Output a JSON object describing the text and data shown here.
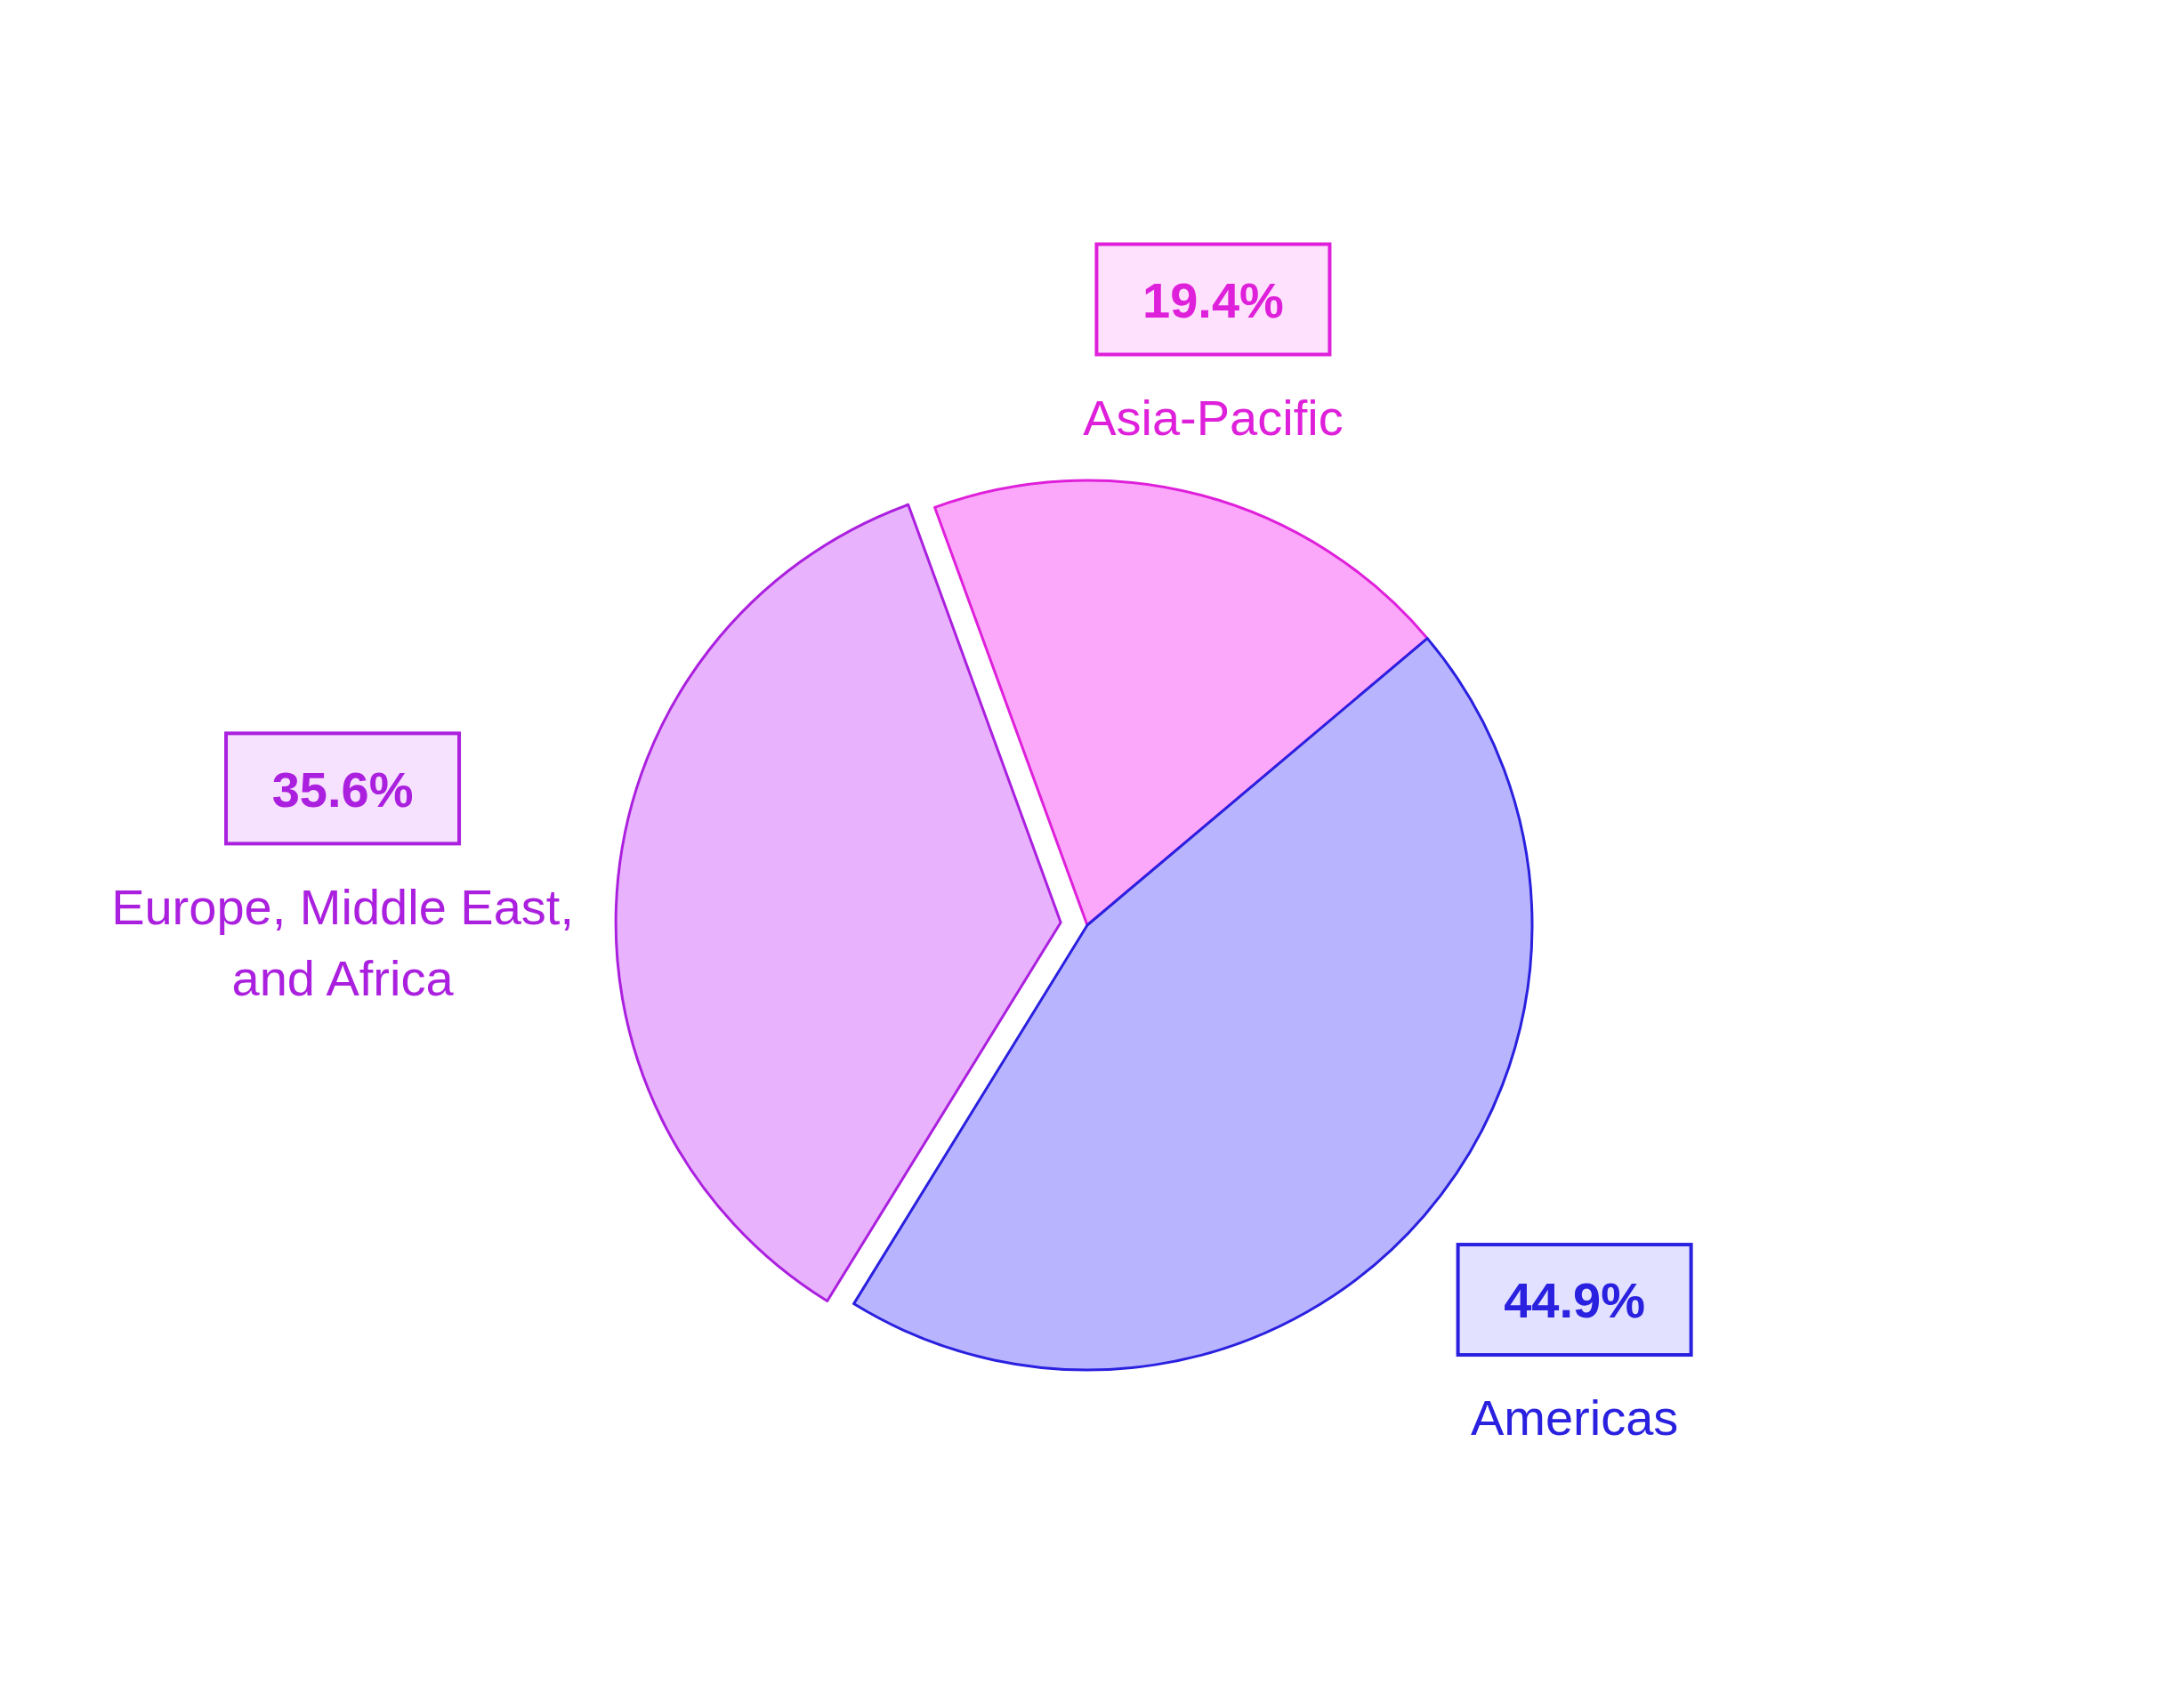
{
  "chart_data": {
    "type": "pie",
    "categories": [
      "Asia-Pacific",
      "Americas",
      "Europe, Middle East, and Africa"
    ],
    "values": [
      19.4,
      44.9,
      35.6
    ],
    "colors": [
      "#fca8fa",
      "#b8b4fe",
      "#e8b2fc"
    ],
    "value_labels": [
      "19.4%",
      "44.9%",
      "35.6%"
    ]
  }
}
